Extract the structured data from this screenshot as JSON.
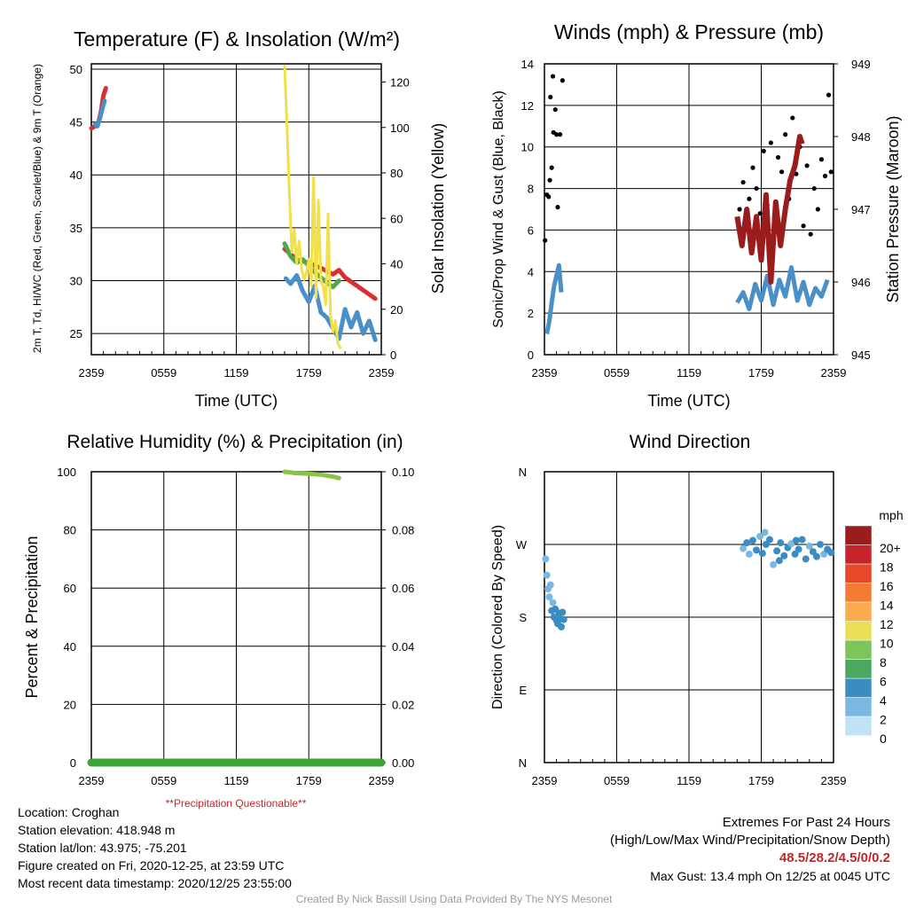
{
  "chart_data": [
    {
      "type": "line",
      "title": "Temperature (F) & Insolation (W/m²)",
      "xlabel": "Time (UTC)",
      "ylabel": "2m T, Td, HI/WC (Red, Green, Scarlet/Blue) & 9m T (Orange)",
      "y2label": "Solar Insolation (Yellow)",
      "x_ticks": [
        "2359",
        "0559",
        "1159",
        "1759",
        "2359"
      ],
      "xlim": [
        0,
        24
      ],
      "ylim": [
        23,
        50.5
      ],
      "yticks": [
        25,
        30,
        35,
        40,
        45,
        50
      ],
      "y2lim": [
        0,
        128
      ],
      "y2ticks": [
        0,
        20,
        40,
        60,
        80,
        100,
        120
      ],
      "grid": true,
      "series": [
        {
          "color": "#d7302f",
          "axis": "left",
          "points": [
            [
              0,
              44.4
            ],
            [
              0.3,
              44.6
            ],
            [
              0.6,
              45.0
            ],
            [
              0.8,
              46.0
            ],
            [
              1.0,
              47.5
            ],
            [
              1.2,
              48.2
            ]
          ]
        },
        {
          "color": "#4a90c8",
          "axis": "left",
          "points": [
            [
              0.3,
              44.8
            ],
            [
              0.5,
              44.6
            ],
            [
              0.7,
              45.3
            ],
            [
              0.9,
              46.2
            ],
            [
              1.1,
              47.0
            ]
          ]
        },
        {
          "color": "#d7302f",
          "axis": "left",
          "points": [
            [
              16,
              33.0
            ],
            [
              16.5,
              32.5
            ],
            [
              17,
              32.0
            ],
            [
              18,
              31.7
            ],
            [
              19,
              31.2
            ],
            [
              20,
              30.6
            ],
            [
              20.5,
              31.0
            ],
            [
              21,
              30.3
            ],
            [
              22,
              29.5
            ],
            [
              23,
              28.7
            ],
            [
              23.5,
              28.3
            ]
          ]
        },
        {
          "color": "#4fa84f",
          "axis": "left",
          "points": [
            [
              16,
              33.5
            ],
            [
              16.5,
              32.3
            ],
            [
              17,
              31.7
            ],
            [
              17.5,
              32.0
            ],
            [
              18,
              31.4
            ],
            [
              18.5,
              30.8
            ],
            [
              19,
              30.3
            ],
            [
              19.5,
              29.8
            ],
            [
              20,
              29.4
            ],
            [
              20.5,
              30.0
            ]
          ]
        },
        {
          "color": "#4a90c8",
          "axis": "left",
          "points": [
            [
              16.1,
              30.2
            ],
            [
              16.5,
              29.7
            ],
            [
              17,
              30.5
            ],
            [
              17.5,
              29.0
            ],
            [
              18,
              28.0
            ],
            [
              18.5,
              29.5
            ],
            [
              19,
              27.0
            ],
            [
              19.5,
              26.5
            ],
            [
              20,
              25.5
            ],
            [
              20.5,
              24.5
            ],
            [
              21,
              27.3
            ],
            [
              21.5,
              25.6
            ],
            [
              22,
              27.0
            ],
            [
              22.5,
              25.0
            ],
            [
              23,
              26.2
            ],
            [
              23.5,
              24.4
            ]
          ]
        },
        {
          "color": "#f2e04a",
          "axis": "right",
          "points": [
            [
              16,
              127
            ],
            [
              16.2,
              100
            ],
            [
              16.4,
              70
            ],
            [
              16.6,
              45
            ],
            [
              16.8,
              55
            ],
            [
              17,
              40
            ],
            [
              17.2,
              50
            ],
            [
              17.4,
              38
            ],
            [
              17.6,
              33
            ],
            [
              17.8,
              36
            ],
            [
              18,
              42
            ],
            [
              18.2,
              30
            ],
            [
              18.4,
              78
            ],
            [
              18.6,
              25
            ],
            [
              18.8,
              68
            ],
            [
              19,
              33
            ],
            [
              19.2,
              30
            ],
            [
              19.4,
              22
            ],
            [
              19.6,
              62
            ],
            [
              19.8,
              17
            ],
            [
              20,
              10
            ],
            [
              20.2,
              15
            ],
            [
              20.4,
              5
            ],
            [
              20.6,
              3
            ]
          ]
        }
      ]
    },
    {
      "type": "scatter",
      "title": "Winds (mph) & Pressure (mb)",
      "xlabel": "Time (UTC)",
      "ylabel": "Sonic/Prop Wind & Gust (Blue, Black)",
      "y2label": "Station Pressure (Maroon)",
      "x_ticks": [
        "2359",
        "0559",
        "1159",
        "1759",
        "2359"
      ],
      "xlim": [
        0,
        24
      ],
      "ylim": [
        0,
        14
      ],
      "yticks": [
        0,
        2,
        4,
        6,
        8,
        10,
        12,
        14
      ],
      "y2lim": [
        945,
        949
      ],
      "y2ticks": [
        945,
        946,
        947,
        948,
        949
      ],
      "grid": true,
      "wind_series": {
        "color": "#4a90c8",
        "points": [
          [
            0.2,
            1.0
          ],
          [
            0.4,
            1.6
          ],
          [
            0.6,
            2.5
          ],
          [
            0.8,
            3.3
          ],
          [
            1.0,
            3.8
          ],
          [
            1.2,
            4.3
          ],
          [
            1.4,
            3.0
          ],
          [
            16.0,
            2.5
          ],
          [
            16.5,
            3.0
          ],
          [
            17.0,
            2.2
          ],
          [
            17.5,
            3.4
          ],
          [
            18.0,
            2.6
          ],
          [
            18.5,
            3.8
          ],
          [
            19.0,
            2.4
          ],
          [
            19.5,
            3.6
          ],
          [
            20.0,
            2.8
          ],
          [
            20.5,
            4.2
          ],
          [
            21.0,
            2.6
          ],
          [
            21.5,
            3.5
          ],
          [
            22.0,
            2.4
          ],
          [
            22.5,
            3.2
          ],
          [
            23.0,
            2.8
          ],
          [
            23.5,
            3.6
          ]
        ]
      },
      "gust_series": {
        "color": "#000000",
        "points": [
          [
            0.05,
            5.5
          ],
          [
            0.2,
            7.7
          ],
          [
            0.35,
            7.6
          ],
          [
            0.45,
            8.4
          ],
          [
            0.5,
            12.4
          ],
          [
            0.6,
            9.0
          ],
          [
            0.7,
            13.4
          ],
          [
            0.75,
            10.7
          ],
          [
            0.9,
            11.8
          ],
          [
            1.0,
            10.6
          ],
          [
            1.1,
            7.1
          ],
          [
            1.3,
            10.6
          ],
          [
            1.5,
            13.2
          ],
          [
            16.2,
            7.0
          ],
          [
            16.5,
            8.3
          ],
          [
            16.8,
            6.1
          ],
          [
            17.0,
            7.5
          ],
          [
            17.3,
            9.0
          ],
          [
            17.6,
            8.0
          ],
          [
            17.9,
            6.8
          ],
          [
            18.2,
            9.8
          ],
          [
            18.5,
            7.2
          ],
          [
            18.8,
            10.2
          ],
          [
            19.1,
            6.5
          ],
          [
            19.4,
            9.5
          ],
          [
            19.7,
            8.8
          ],
          [
            20.0,
            10.6
          ],
          [
            20.3,
            7.5
          ],
          [
            20.6,
            11.4
          ],
          [
            20.9,
            8.7
          ],
          [
            21.2,
            10.0
          ],
          [
            21.5,
            6.2
          ],
          [
            21.8,
            9.1
          ],
          [
            22.1,
            5.8
          ],
          [
            22.4,
            8.0
          ],
          [
            22.7,
            7.0
          ],
          [
            23.0,
            9.4
          ],
          [
            23.3,
            8.6
          ],
          [
            23.6,
            12.5
          ],
          [
            23.8,
            8.8
          ]
        ]
      },
      "pressure_series": {
        "color": "#9b1c1c",
        "points": [
          [
            16.0,
            946.9
          ],
          [
            16.4,
            946.5
          ],
          [
            16.8,
            947.0
          ],
          [
            17.2,
            946.4
          ],
          [
            17.6,
            946.9
          ],
          [
            18.0,
            946.3
          ],
          [
            18.4,
            947.2
          ],
          [
            18.8,
            946.0
          ],
          [
            19.2,
            947.1
          ],
          [
            19.6,
            946.5
          ],
          [
            20.0,
            947.0
          ],
          [
            20.4,
            947.4
          ],
          [
            20.8,
            947.6
          ],
          [
            21.2,
            948.0
          ],
          [
            21.4,
            947.9
          ]
        ]
      }
    },
    {
      "type": "line",
      "title": "Relative Humidity (%) & Precipitation (in)",
      "ylabel": "Percent & Precipitation",
      "x_ticks": [
        "2359",
        "0559",
        "1159",
        "1759",
        "2359"
      ],
      "xlim": [
        0,
        24
      ],
      "ylim": [
        0,
        100
      ],
      "yticks": [
        0,
        20,
        40,
        60,
        80,
        100
      ],
      "y2lim": [
        0,
        0.1
      ],
      "y2ticks": [
        "0.00",
        "0.02",
        "0.04",
        "0.06",
        "0.08",
        "0.10"
      ],
      "grid": true,
      "note": "**Precipitation Questionable**",
      "series": [
        {
          "color": "#8bc34a",
          "points": [
            [
              16,
              100
            ],
            [
              17,
              99.5
            ],
            [
              18,
              99.3
            ],
            [
              19,
              99
            ],
            [
              20,
              98.3
            ],
            [
              20.5,
              97.8
            ]
          ]
        },
        {
          "color": "#3aa63a",
          "points": [
            [
              0,
              0
            ],
            [
              24,
              0
            ]
          ]
        }
      ]
    },
    {
      "type": "scatter",
      "title": "Wind Direction",
      "ylabel": "Direction (Colored By Speed)",
      "x_ticks": [
        "2359",
        "0559",
        "1159",
        "1759",
        "2359"
      ],
      "xlim": [
        0,
        24
      ],
      "y_ticks": [
        "N",
        "E",
        "S",
        "W",
        "N"
      ],
      "ylim": [
        0,
        360
      ],
      "grid": true,
      "colorbar": {
        "unit": "mph",
        "labels": [
          "0",
          "2",
          "4",
          "6",
          "8",
          "10",
          "12",
          "14",
          "16",
          "18",
          "20+"
        ],
        "colors": [
          "#bde3f5",
          "#7ab8e4",
          "#3c8cc4",
          "#4aa861",
          "#7dc45c",
          "#e8df55",
          "#f8ac4d",
          "#f37b35",
          "#e7482a",
          "#c5252a",
          "#9b1c1c"
        ]
      },
      "points": [
        [
          0.1,
          252,
          1
        ],
        [
          0.2,
          232,
          2
        ],
        [
          0.3,
          215,
          1
        ],
        [
          0.4,
          205,
          2
        ],
        [
          0.5,
          220,
          2
        ],
        [
          0.6,
          188,
          3
        ],
        [
          0.7,
          198,
          2
        ],
        [
          0.8,
          180,
          3
        ],
        [
          0.9,
          190,
          3
        ],
        [
          1.0,
          176,
          4
        ],
        [
          1.1,
          172,
          3
        ],
        [
          1.2,
          185,
          4
        ],
        [
          1.3,
          178,
          4
        ],
        [
          1.4,
          168,
          4
        ],
        [
          1.5,
          186,
          4
        ],
        [
          1.6,
          177,
          4
        ],
        [
          16.5,
          265,
          2
        ],
        [
          16.8,
          272,
          3
        ],
        [
          17.0,
          258,
          2
        ],
        [
          17.3,
          275,
          3
        ],
        [
          17.6,
          263,
          4
        ],
        [
          17.9,
          280,
          2
        ],
        [
          18.1,
          259,
          3
        ],
        [
          18.4,
          270,
          4
        ],
        [
          18.7,
          276,
          3
        ],
        [
          19.0,
          245,
          2
        ],
        [
          19.3,
          262,
          4
        ],
        [
          19.6,
          272,
          3
        ],
        [
          19.9,
          256,
          4
        ],
        [
          20.2,
          266,
          3
        ],
        [
          20.5,
          271,
          2
        ],
        [
          20.8,
          258,
          4
        ],
        [
          21.1,
          264,
          3
        ],
        [
          21.4,
          276,
          4
        ],
        [
          21.7,
          252,
          3
        ],
        [
          22.0,
          268,
          2
        ],
        [
          22.3,
          261,
          4
        ],
        [
          22.6,
          255,
          3
        ],
        [
          22.9,
          270,
          3
        ],
        [
          23.2,
          258,
          2
        ],
        [
          23.5,
          264,
          3
        ],
        [
          23.8,
          260,
          4
        ],
        [
          18.3,
          285,
          2
        ],
        [
          19.5,
          250,
          3
        ],
        [
          20.9,
          275,
          3
        ]
      ]
    }
  ],
  "info": {
    "location": "Location: Croghan",
    "elevation": "Station elevation: 418.948 m",
    "latlon": "Station lat/lon: 43.975; -75.201",
    "created": "Figure created on Fri, 2020-12-25, at 23:59 UTC",
    "recent": "Most recent data timestamp: 2020/12/25 23:55:00"
  },
  "extremes": {
    "heading": "Extremes For Past 24 Hours",
    "subheading": "(High/Low/Max Wind/Precipitation/Snow Depth)",
    "values": "48.5/28.2/4.5/0/0.2",
    "gust": "Max Gust: 13.4 mph On 12/25 at 0045 UTC"
  },
  "credit": "Created By Nick Bassill Using Data Provided By The NYS Mesonet"
}
